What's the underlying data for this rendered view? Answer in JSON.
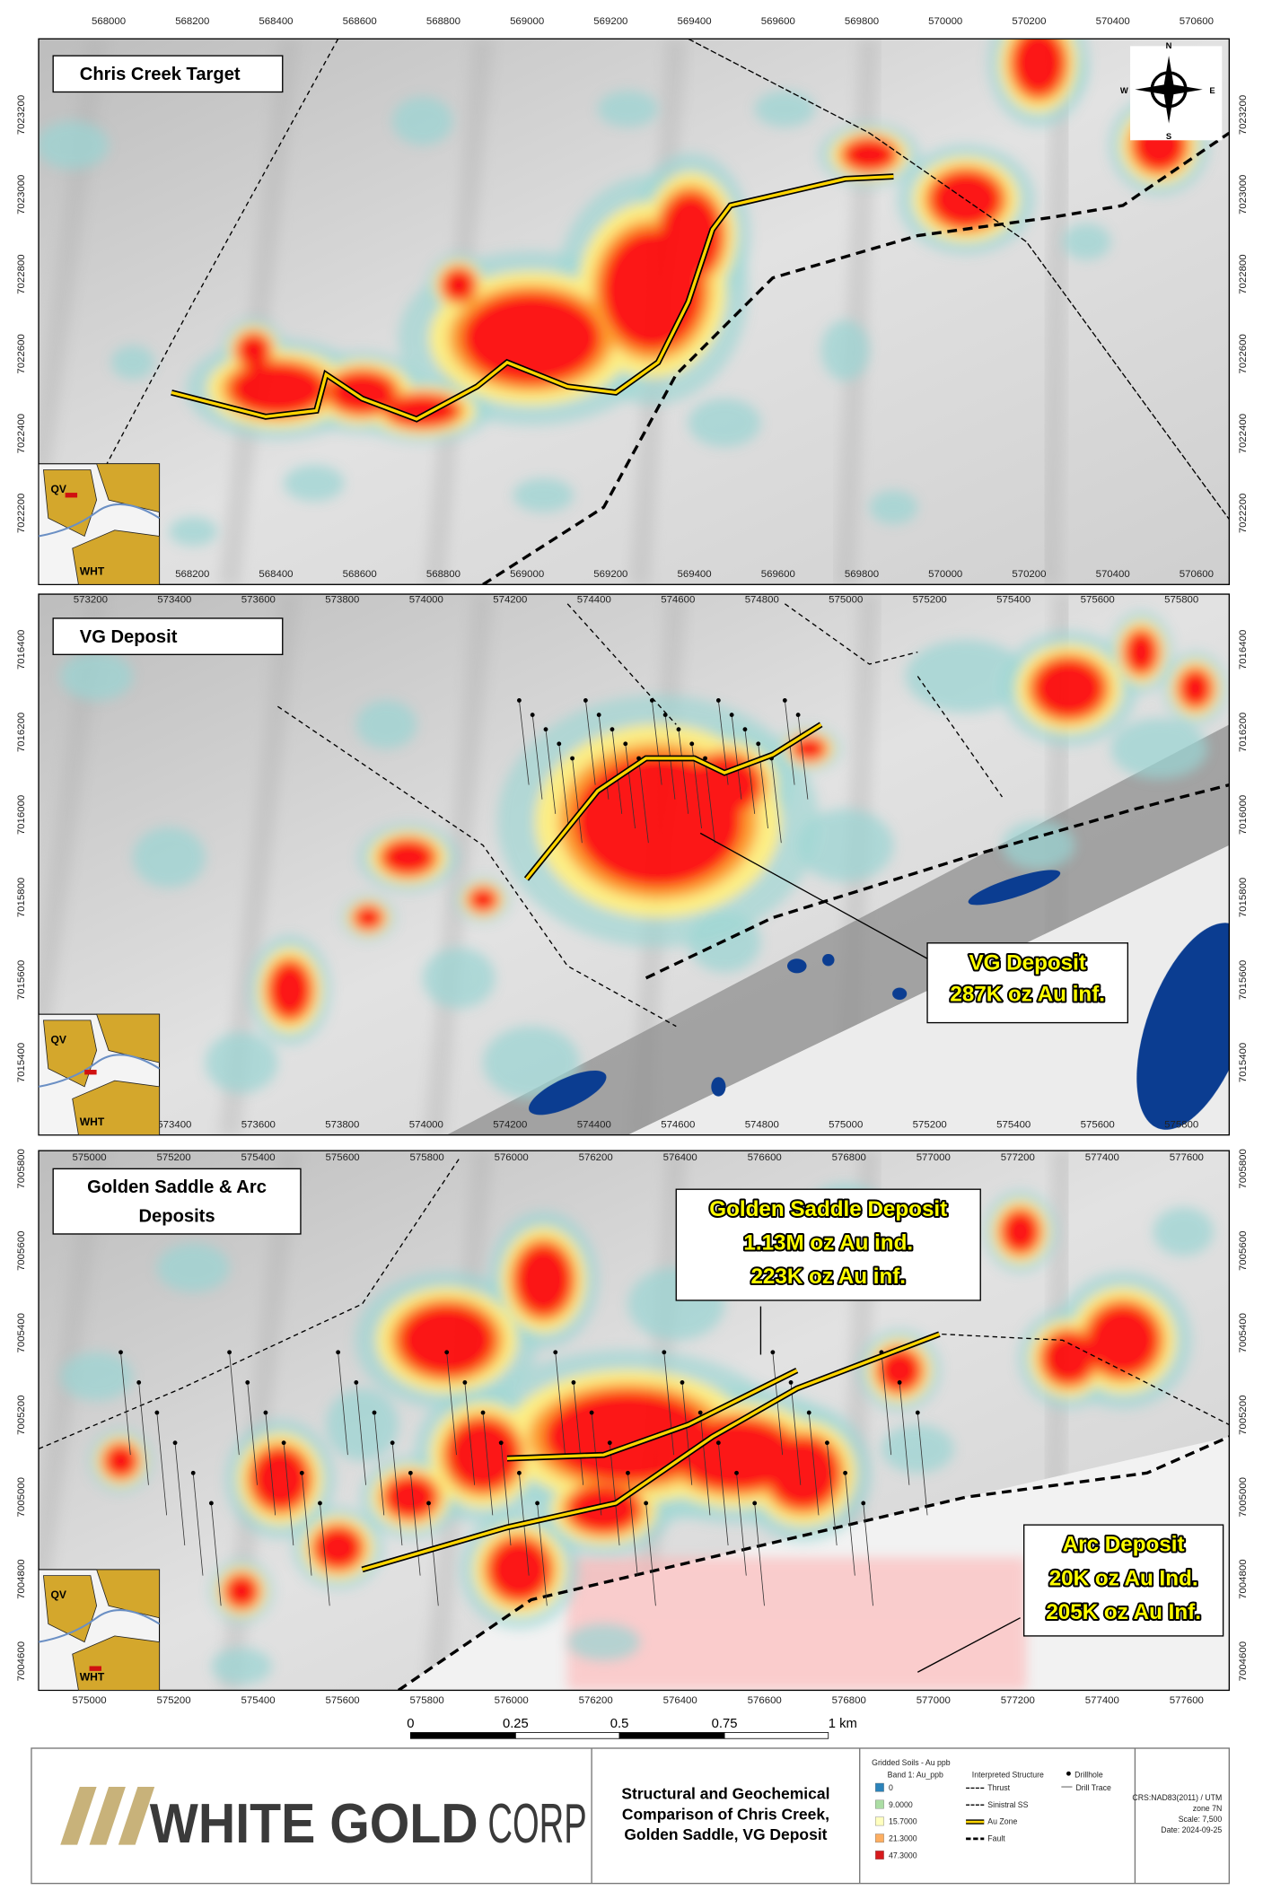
{
  "panels": [
    {
      "title_lines": [
        "Chris Creek Target"
      ],
      "x_ticks": [
        568000,
        568200,
        568400,
        568600,
        568800,
        569000,
        569200,
        569400,
        569600,
        569800,
        570000,
        570200,
        570400,
        570600
      ],
      "y_ticks": [
        7023200,
        7023000,
        7022800,
        7022600,
        7022400,
        7022200
      ],
      "inset": [
        "QV",
        "WHT"
      ],
      "callouts": []
    },
    {
      "title_lines": [
        "VG  Deposit"
      ],
      "x_ticks": [
        573200,
        573400,
        573600,
        573800,
        574000,
        574200,
        574400,
        574600,
        574800,
        575000,
        575200,
        575400,
        575600,
        575800
      ],
      "y_ticks": [
        7016400,
        7016200,
        7016000,
        7015800,
        7015600,
        7015400
      ],
      "inset": [
        "QV",
        "WHT"
      ],
      "callouts": [
        {
          "lines": [
            "VG Deposit",
            "287K oz Au inf."
          ]
        }
      ]
    },
    {
      "title_lines": [
        "Golden Saddle & Arc",
        "Deposits"
      ],
      "x_ticks": [
        575000,
        575200,
        575400,
        575600,
        575800,
        576000,
        576200,
        576400,
        576600,
        576800,
        577000,
        577200,
        577400,
        577600
      ],
      "y_ticks": [
        7005800,
        7005600,
        7005400,
        7005200,
        7005000,
        7004800,
        7004600
      ],
      "inset": [
        "QV",
        "WHT"
      ],
      "callouts": [
        {
          "lines": [
            "Golden Saddle Deposit",
            "1.13M oz Au ind.",
            "223K oz Au inf."
          ]
        },
        {
          "lines": [
            "Arc Deposit",
            "20K oz Au Ind.",
            "205K oz Au Inf."
          ]
        }
      ]
    }
  ],
  "compass": [
    "N",
    "E",
    "S",
    "W"
  ],
  "scale_bar": [
    "0",
    "0.25",
    "0.5",
    "0.75",
    "1 km"
  ],
  "logo": {
    "name": "WHITE GOLD",
    "suffix": "CORP"
  },
  "map_title": [
    "Structural and Geochemical",
    "Comparison of Chris Creek,",
    "Golden Saddle, VG Deposit"
  ],
  "legend": {
    "soils_title": "Gridded Soils - Au ppb",
    "band": "Band 1: Au_ppb",
    "classes": [
      {
        "label": "0",
        "color": "#2b83ba"
      },
      {
        "label": "9.0000",
        "color": "#abdda4"
      },
      {
        "label": "15.7000",
        "color": "#ffffbf"
      },
      {
        "label": "21.3000",
        "color": "#fdae61"
      },
      {
        "label": "47.3000",
        "color": "#d7191c"
      }
    ],
    "structure_title": "Interpreted Structure",
    "structures": [
      "Thrust",
      "Sinistral SS",
      "Au Zone",
      "Fault"
    ],
    "drill": [
      "Drillhole",
      "Drill Trace"
    ]
  },
  "crs": [
    "CRS:NAD83(2011) / UTM",
    "zone 7N",
    "Scale: 7,500",
    "Date: 2024-09-25"
  ]
}
